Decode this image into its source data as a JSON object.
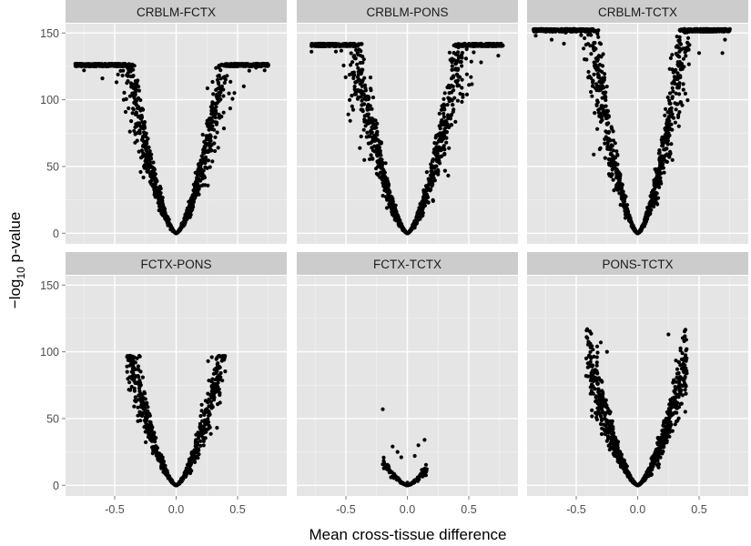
{
  "chart_data": {
    "type": "scatter",
    "xlabel": "Mean cross-tissue difference",
    "ylabel": {
      "prefix": "−log",
      "sub": "10",
      "suffix": " p-value"
    },
    "xlim": [
      -0.9,
      0.9
    ],
    "ylim": [
      -8,
      157
    ],
    "xticks": [
      -0.5,
      0.0,
      0.5
    ],
    "xtick_labels": [
      "-0.5",
      "0.0",
      "0.5"
    ],
    "yticks": [
      0,
      50,
      100,
      150
    ],
    "ytick_labels": [
      "0",
      "50",
      "100",
      "150"
    ],
    "grid": true,
    "point_color": "#000000",
    "panel_background": "#e5e5e5",
    "strip_background": "#cccccc",
    "facets": [
      {
        "label": "CRBLM-FCTX",
        "x_min": -0.82,
        "x_max": 0.75,
        "y_max": 127,
        "slope": 520,
        "n": 1400,
        "highlights": [
          [
            -0.82,
            127
          ],
          [
            -0.75,
            122
          ],
          [
            0.72,
            122
          ],
          [
            0.65,
            124
          ],
          [
            -0.6,
            116
          ],
          [
            0.55,
            110
          ]
        ]
      },
      {
        "label": "CRBLM-PONS",
        "x_min": -0.78,
        "x_max": 0.78,
        "y_max": 142,
        "slope": 500,
        "n": 1500,
        "highlights": [
          [
            0.73,
            142
          ],
          [
            0.74,
            133
          ],
          [
            -0.78,
            136
          ],
          [
            -0.7,
            140
          ],
          [
            0.6,
            128
          ]
        ]
      },
      {
        "label": "CRBLM-TCTX",
        "x_min": -0.85,
        "x_max": 0.75,
        "y_max": 153,
        "slope": 640,
        "n": 1500,
        "highlights": [
          [
            0.75,
            153
          ],
          [
            0.71,
            145
          ],
          [
            0.69,
            135
          ],
          [
            -0.83,
            148
          ],
          [
            -0.7,
            145
          ],
          [
            -0.6,
            142
          ],
          [
            0.5,
            135
          ]
        ]
      },
      {
        "label": "FCTX-PONS",
        "x_min": -0.4,
        "x_max": 0.4,
        "y_max": 97,
        "slope": 420,
        "n": 700,
        "highlights": [
          [
            -0.4,
            89
          ],
          [
            -0.3,
            97
          ],
          [
            -0.35,
            84
          ],
          [
            -0.34,
            78
          ],
          [
            0.29,
            96
          ],
          [
            0.26,
            93
          ],
          [
            0.39,
            94
          ],
          [
            -0.27,
            60
          ]
        ]
      },
      {
        "label": "FCTX-TCTX",
        "x_min": -0.2,
        "x_max": 0.16,
        "y_max": 57,
        "slope": 200,
        "n": 180,
        "highlights": [
          [
            -0.2,
            57
          ],
          [
            -0.12,
            29
          ],
          [
            -0.08,
            25
          ],
          [
            -0.05,
            21
          ],
          [
            0.14,
            34
          ],
          [
            0.09,
            30
          ],
          [
            0.06,
            22
          ],
          [
            0.0,
            2
          ]
        ]
      },
      {
        "label": "PONS-TCTX",
        "x_min": -0.42,
        "x_max": 0.4,
        "y_max": 117,
        "slope": 380,
        "n": 900,
        "highlights": [
          [
            -0.41,
            117
          ],
          [
            -0.3,
            107
          ],
          [
            -0.33,
            104
          ],
          [
            0.25,
            113
          ],
          [
            0.4,
            84
          ],
          [
            0.37,
            91
          ],
          [
            0.34,
            71
          ],
          [
            -0.25,
            100
          ]
        ]
      }
    ]
  }
}
